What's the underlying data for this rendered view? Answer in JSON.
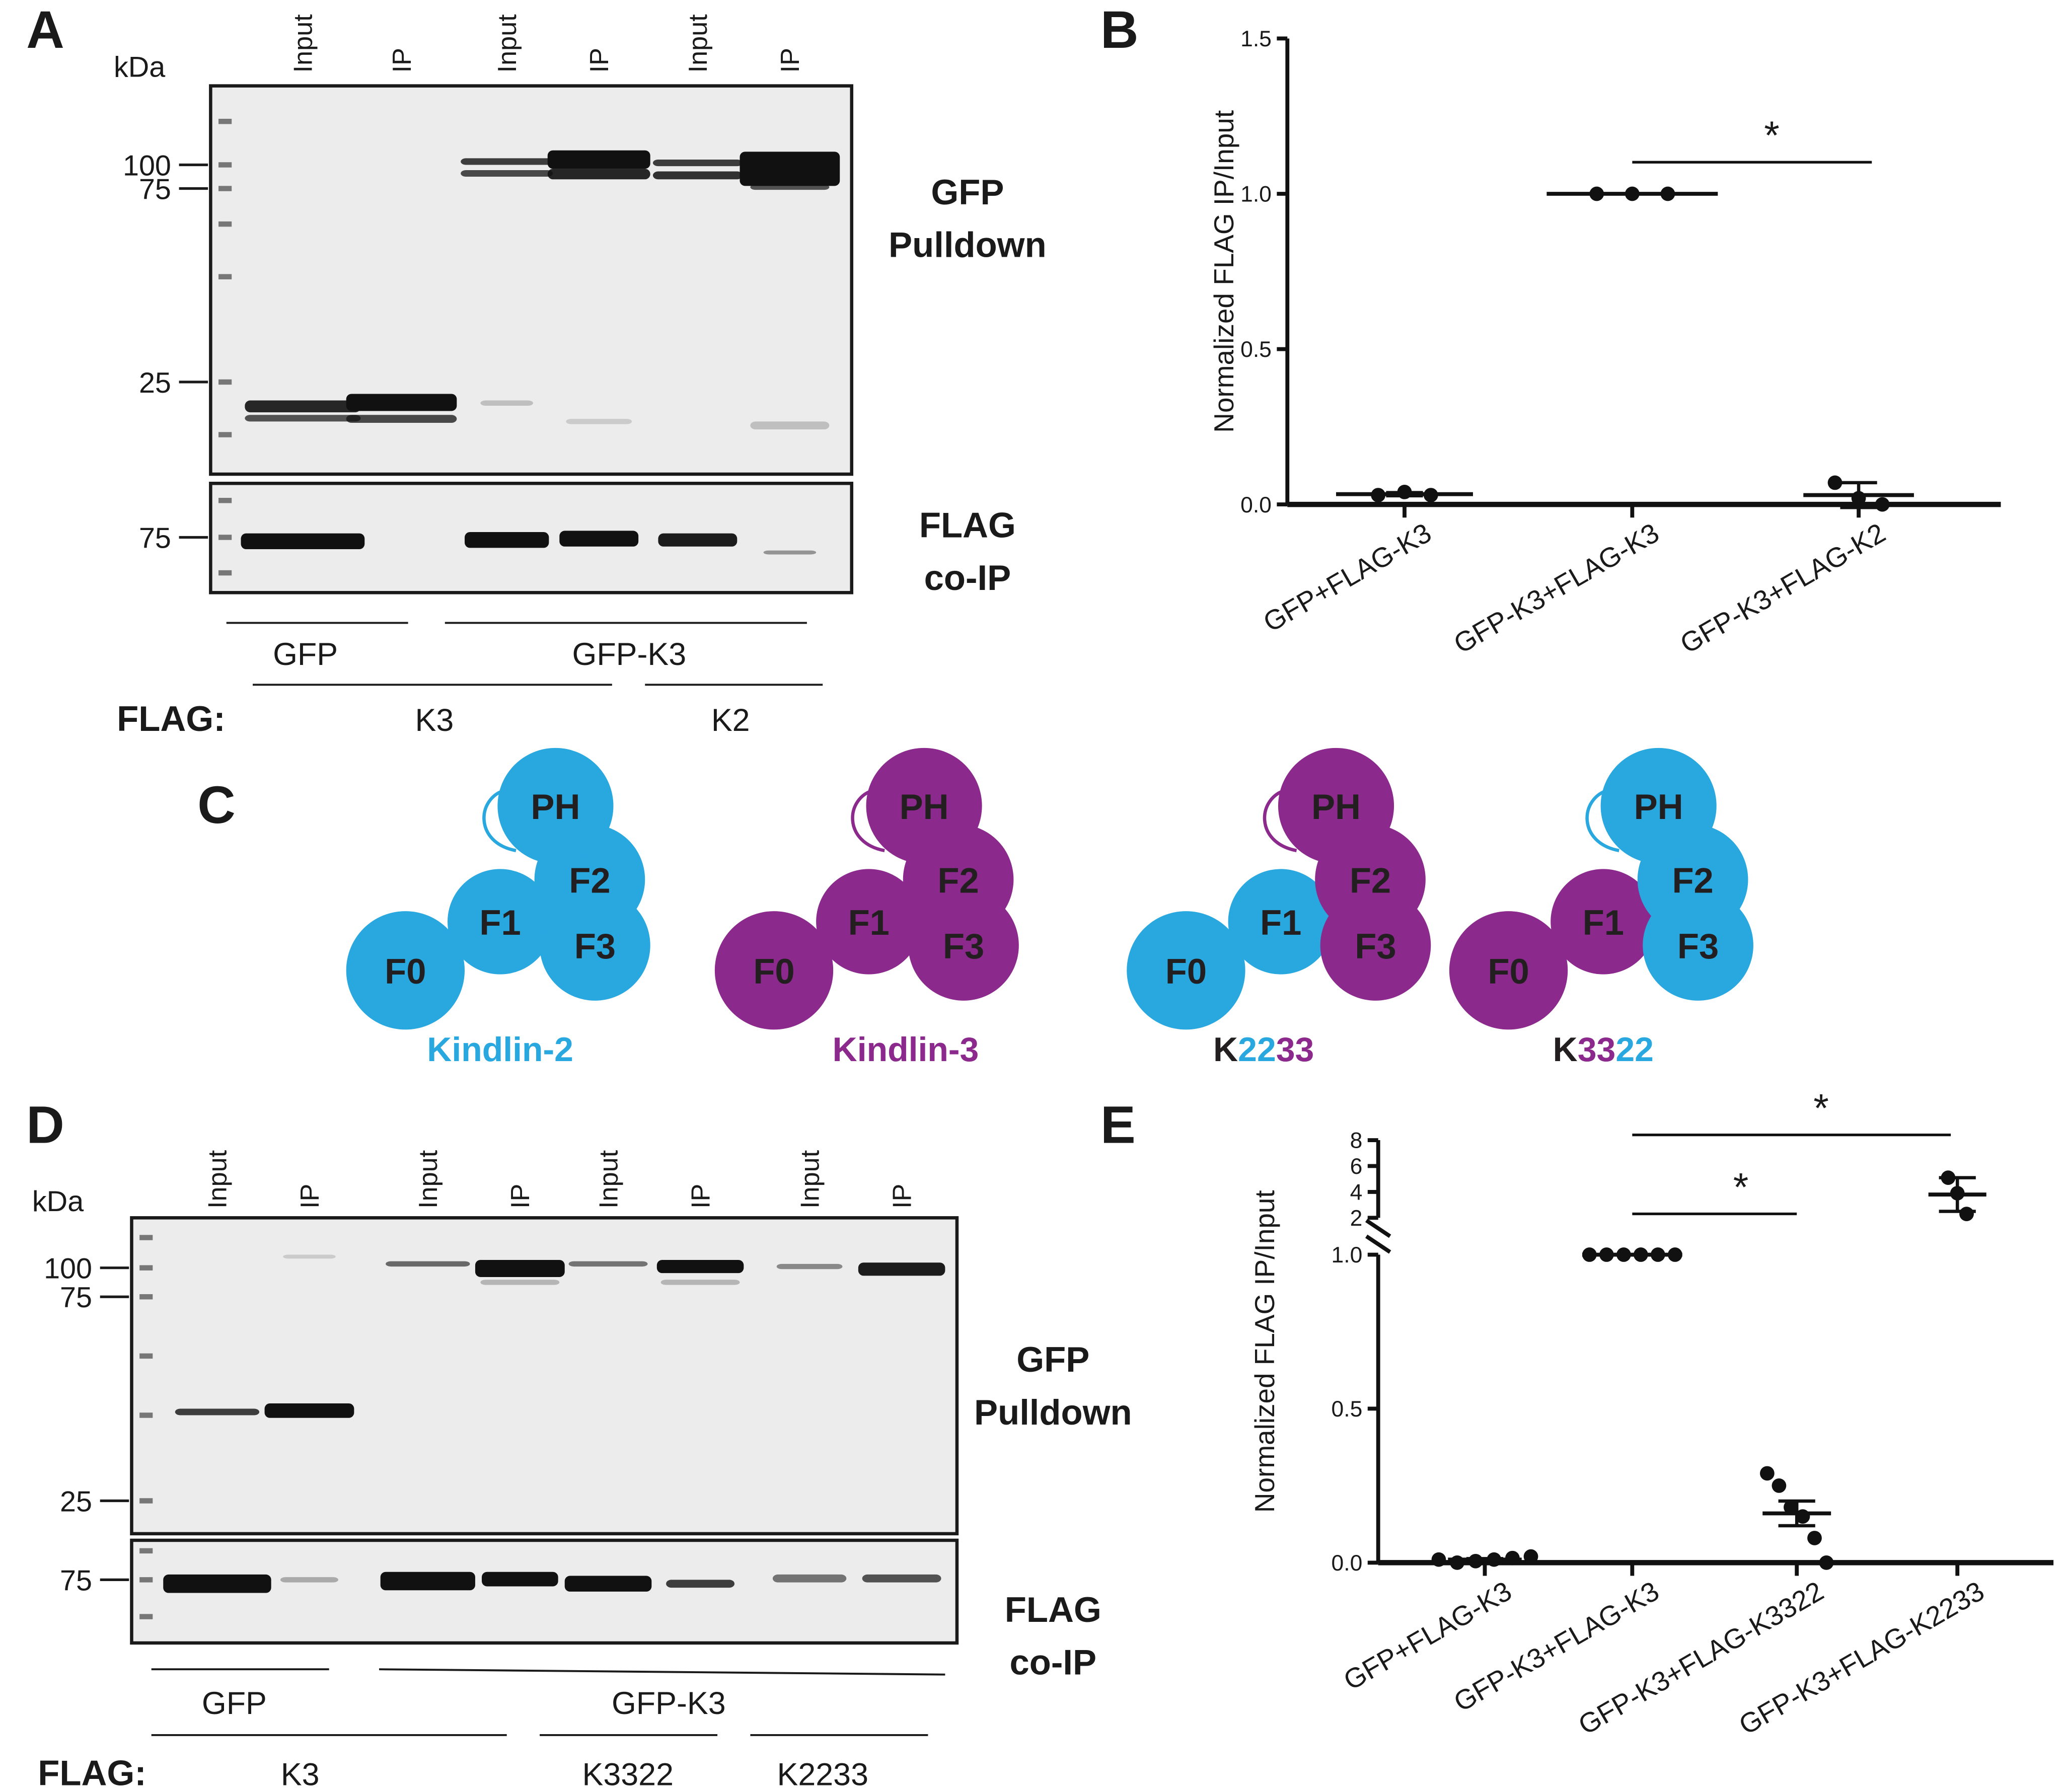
{
  "panel_a": {
    "label": "A",
    "kda": "kDa",
    "lanes": [
      "Input",
      "IP",
      "Input",
      "IP",
      "Input",
      "IP"
    ],
    "markers": [
      100,
      75,
      25
    ],
    "markers_lower": [
      75
    ],
    "blot_upper": [
      "GFP",
      "Pulldown"
    ],
    "blot_lower": [
      "FLAG",
      "co-IP"
    ],
    "gfp_groups": [
      "GFP",
      "GFP-K3"
    ],
    "flag_label": "FLAG:",
    "flag_groups": [
      "K3",
      "K2"
    ]
  },
  "panel_c": {
    "label": "C",
    "constructs": [
      {
        "domains": [
          {
            "text": "PH",
            "color": "#29a8e0"
          },
          {
            "text": "F2",
            "color": "#29a8e0"
          },
          {
            "text": "F1",
            "color": "#29a8e0"
          },
          {
            "text": "F3",
            "color": "#29a8e0"
          },
          {
            "text": "F0",
            "color": "#29a8e0"
          }
        ],
        "name": [
          {
            "text": "Kindlin-2",
            "color": "#29a8e0"
          }
        ]
      },
      {
        "domains": [
          {
            "text": "PH",
            "color": "#8b2a8c"
          },
          {
            "text": "F2",
            "color": "#8b2a8c"
          },
          {
            "text": "F1",
            "color": "#8b2a8c"
          },
          {
            "text": "F3",
            "color": "#8b2a8c"
          },
          {
            "text": "F0",
            "color": "#8b2a8c"
          }
        ],
        "name": [
          {
            "text": "Kindlin-3",
            "color": "#8b2a8c"
          }
        ]
      },
      {
        "domains": [
          {
            "text": "PH",
            "color": "#8b2a8c"
          },
          {
            "text": "F2",
            "color": "#8b2a8c"
          },
          {
            "text": "F1",
            "color": "#29a8e0"
          },
          {
            "text": "F3",
            "color": "#8b2a8c"
          },
          {
            "text": "F0",
            "color": "#29a8e0"
          }
        ],
        "name": [
          {
            "text": "K",
            "color": "#231f20"
          },
          {
            "text": "22",
            "color": "#29a8e0"
          },
          {
            "text": "33",
            "color": "#8b2a8c"
          }
        ]
      },
      {
        "domains": [
          {
            "text": "PH",
            "color": "#29a8e0"
          },
          {
            "text": "F2",
            "color": "#29a8e0"
          },
          {
            "text": "F1",
            "color": "#8b2a8c"
          },
          {
            "text": "F3",
            "color": "#29a8e0"
          },
          {
            "text": "F0",
            "color": "#8b2a8c"
          }
        ],
        "name": [
          {
            "text": "K",
            "color": "#231f20"
          },
          {
            "text": "33",
            "color": "#8b2a8c"
          },
          {
            "text": "22",
            "color": "#29a8e0"
          }
        ]
      }
    ]
  },
  "panel_d": {
    "label": "D",
    "kda": "kDa",
    "lanes": [
      "Input",
      "IP",
      "Input",
      "IP",
      "Input",
      "IP",
      "Input",
      "IP"
    ],
    "markers": [
      100,
      75,
      25
    ],
    "markers_lower": [
      75
    ],
    "blot_upper": [
      "GFP",
      "Pulldown"
    ],
    "blot_lower": [
      "FLAG",
      "co-IP"
    ],
    "gfp_groups": [
      "GFP",
      "GFP-K3"
    ],
    "flag_label": "FLAG:",
    "flag_groups": [
      "K3",
      "K3322",
      "K2233"
    ]
  },
  "chart_data": [
    {
      "type": "dotplot",
      "panel_label": "B",
      "ylabel": "Normalized FLAG IP/Input",
      "categories": [
        "GFP+FLAG-K3",
        "GFP-K3+FLAG-K3",
        "GFP-K3+FLAG-K2"
      ],
      "values": [
        [
          0.03,
          0.04,
          0.03
        ],
        [
          1,
          1,
          1
        ],
        [
          0.07,
          0.02,
          0.0
        ]
      ],
      "means": [
        0.033,
        1,
        0.03
      ],
      "errors": [
        0.005,
        0,
        0.04
      ],
      "ylim": [
        0,
        1.5
      ],
      "yticks": [
        {
          "value": 0,
          "label": "0.0"
        },
        0.5,
        {
          "value": 1,
          "label": "1.0"
        },
        1.5
      ],
      "annotations": [
        "*"
      ],
      "color": "#111111"
    },
    {
      "type": "dotplot",
      "panel_label": "E",
      "ylabel": "Normalized FLAG IP/Input",
      "categories": [
        "GFP+FLAG-K3",
        "GFP-K3+FLAG-K3",
        "GFP-K3+FLAG-K3322",
        "GFP-K3+FLAG-K2233"
      ],
      "values": [
        [
          0.01,
          0.0,
          0.005,
          0.01,
          0.015,
          0.02
        ],
        [
          1,
          1,
          1,
          1,
          1,
          1
        ],
        [
          0.29,
          0.25,
          0.18,
          0.15,
          0.08,
          0.0
        ],
        [
          5.1,
          3.9,
          2.3
        ]
      ],
      "means": [
        0.01,
        1,
        0.16,
        3.8
      ],
      "errors": [
        0.003,
        0,
        0.04,
        1.3
      ],
      "ylim": [
        0,
        1
      ],
      "yticks": [
        {
          "value": 0,
          "label": "0.0"
        },
        0.5,
        {
          "value": 1,
          "label": "1.0"
        }
      ],
      "broken_axis": {
        "ylim": [
          2,
          8
        ],
        "yticks": [
          2,
          4,
          6,
          8
        ]
      },
      "annotations": [
        "*",
        "*"
      ],
      "color": "#111111"
    }
  ]
}
